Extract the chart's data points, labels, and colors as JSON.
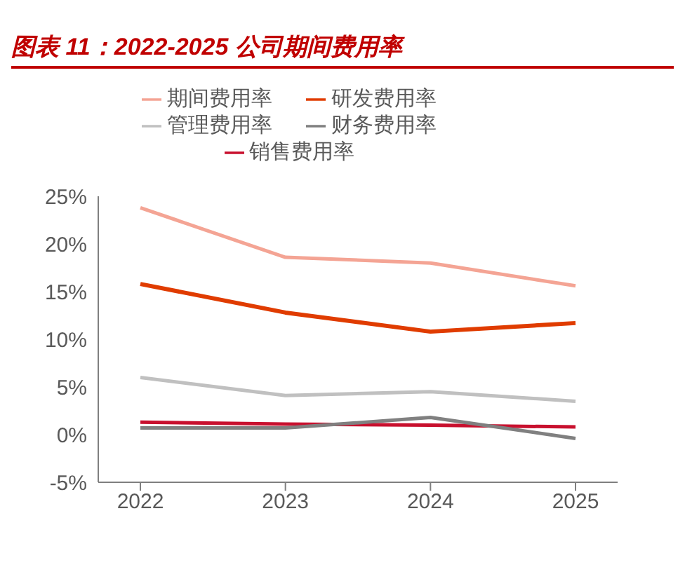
{
  "chart_data": {
    "type": "line",
    "title": "图表 11：2022-2025 公司期间费用率",
    "categories": [
      "2022",
      "2023",
      "2024",
      "2025"
    ],
    "series": [
      {
        "name": "销售费用率",
        "color": "#c8102e",
        "values": [
          1.3,
          1.1,
          1.0,
          0.8
        ]
      },
      {
        "name": "管理费用率",
        "color": "#c0c0c0",
        "values": [
          6.0,
          4.1,
          4.5,
          3.5
        ]
      },
      {
        "name": "研发费用率",
        "color": "#e03c00",
        "values": [
          15.8,
          12.8,
          10.8,
          11.7
        ]
      },
      {
        "name": "财务费用率",
        "color": "#808080",
        "values": [
          0.7,
          0.7,
          1.8,
          -0.4
        ]
      },
      {
        "name": "期间费用率",
        "color": "#f4a494",
        "values": [
          23.8,
          18.6,
          18.0,
          15.6
        ]
      }
    ],
    "ylim": [
      -5,
      25
    ],
    "yticks": [
      {
        "value": -5,
        "label": "-5%"
      },
      {
        "value": 0,
        "label": "0%"
      },
      {
        "value": 5,
        "label": "5%"
      },
      {
        "value": 10,
        "label": "10%"
      },
      {
        "value": 15,
        "label": "15%"
      },
      {
        "value": 20,
        "label": "20%"
      },
      {
        "value": 25,
        "label": "25%"
      }
    ],
    "grid": false,
    "legend": "top",
    "marker": "none",
    "line_style": "solid"
  }
}
